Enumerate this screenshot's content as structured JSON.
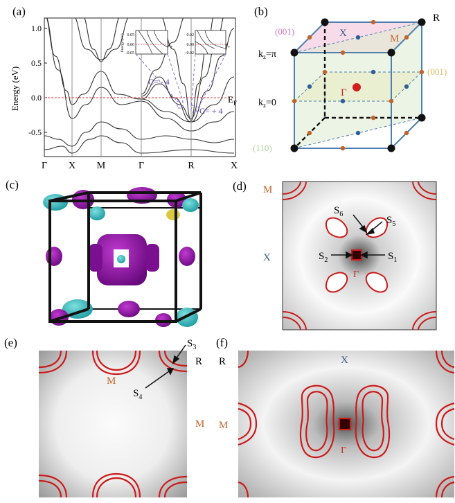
{
  "panels": {
    "a": "(a)",
    "b": "(b)",
    "c": "(c)",
    "d": "(d)",
    "e": "(e)",
    "f": "(f)"
  },
  "chart_data": {
    "type": "line",
    "ylabel": "Energy (eV)",
    "ylim": [
      -0.85,
      1.15
    ],
    "yticks": [
      "1.0",
      "0.5",
      "0.0",
      "-0.5"
    ],
    "ytick_values": [
      1.0,
      0.5,
      0.0,
      -0.5
    ],
    "kpath": [
      "Γ",
      "X",
      "M",
      "Γ",
      "R",
      "X"
    ],
    "fermi_label": "E",
    "fermi_sub": "F",
    "annotations": [
      {
        "text": "C= - 4"
      },
      {
        "text": "C= + 4"
      }
    ],
    "inset_left": {
      "ylabel": "Energy (eV)",
      "yticks": [
        "0.05",
        "0.00",
        "-0.05"
      ],
      "ef": "E",
      "ef_sub": "F"
    },
    "inset_right": {
      "yticks": [
        "0.02",
        "0.00",
        "-0.02"
      ],
      "ef": "E",
      "ef_sub": "F"
    }
  },
  "bz": {
    "label_R": "R",
    "label_X": "X",
    "label_M": "M",
    "label_gamma": "Γ",
    "plane_001_left": "(001)",
    "plane_001_right": "(001)",
    "plane_110": "(110)",
    "kz_pi_main": "k",
    "kz_pi_sub": "z",
    "kz_pi_rest": "=π",
    "kz_0_main": "k",
    "kz_0_sub": "z",
    "kz_0_rest": "=0",
    "colors": {
      "orange": "#c0642a",
      "blue": "#3a5a86",
      "red": "#d21e1e"
    }
  },
  "fs_d": {
    "label_M": "M",
    "label_X": "X",
    "label_gamma": "Γ",
    "s1": "S",
    "s1_sub": "1",
    "s2": "S",
    "s2_sub": "2",
    "s5": "S",
    "s5_sub": "5",
    "s6": "S",
    "s6_sub": "6"
  },
  "fs_e": {
    "label_M_top": "M",
    "label_M_right": "M",
    "label_R": "R",
    "s3": "S",
    "s3_sub": "3",
    "s4": "S",
    "s4_sub": "4"
  },
  "fs_f": {
    "label_R": "R",
    "label_X": "X",
    "label_M": "M",
    "label_gamma": "Γ"
  }
}
